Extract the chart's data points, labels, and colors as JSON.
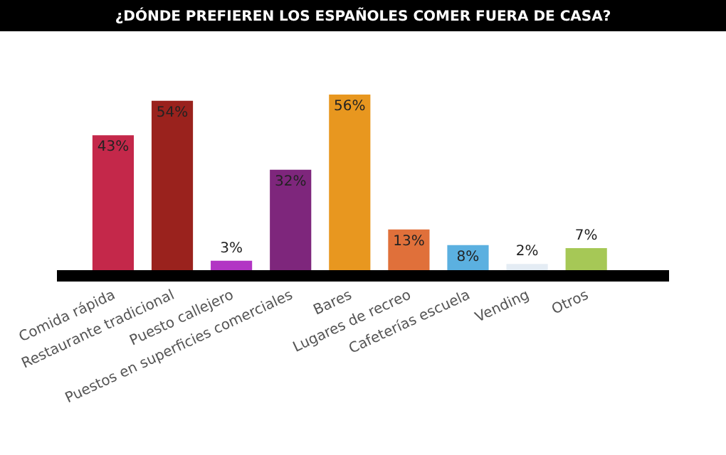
{
  "chart_data": {
    "type": "bar",
    "title": "¿DÓNDE PREFIEREN LOS ESPAÑOLES COMER FUERA DE CASA?",
    "categories": [
      "Comida rápida",
      "Restaurante tradicional",
      "Puesto callejero",
      "Puestos en superficies comerciales",
      "Bares",
      "Lugares de recreo",
      "Cafeterías escuela",
      "Vending",
      "Otros"
    ],
    "values": [
      43,
      54,
      3,
      32,
      56,
      13,
      8,
      2,
      7
    ],
    "colors": [
      "#c4284a",
      "#9a221d",
      "#b236c4",
      "#7e267c",
      "#e8971f",
      "#e0703a",
      "#5bb0e0",
      "#e4ecf4",
      "#a6c856"
    ],
    "value_labels": [
      "43%",
      "54%",
      "3%",
      "32%",
      "56%",
      "13%",
      "8%",
      "2%",
      "7%"
    ],
    "grid": false,
    "legend": false
  }
}
